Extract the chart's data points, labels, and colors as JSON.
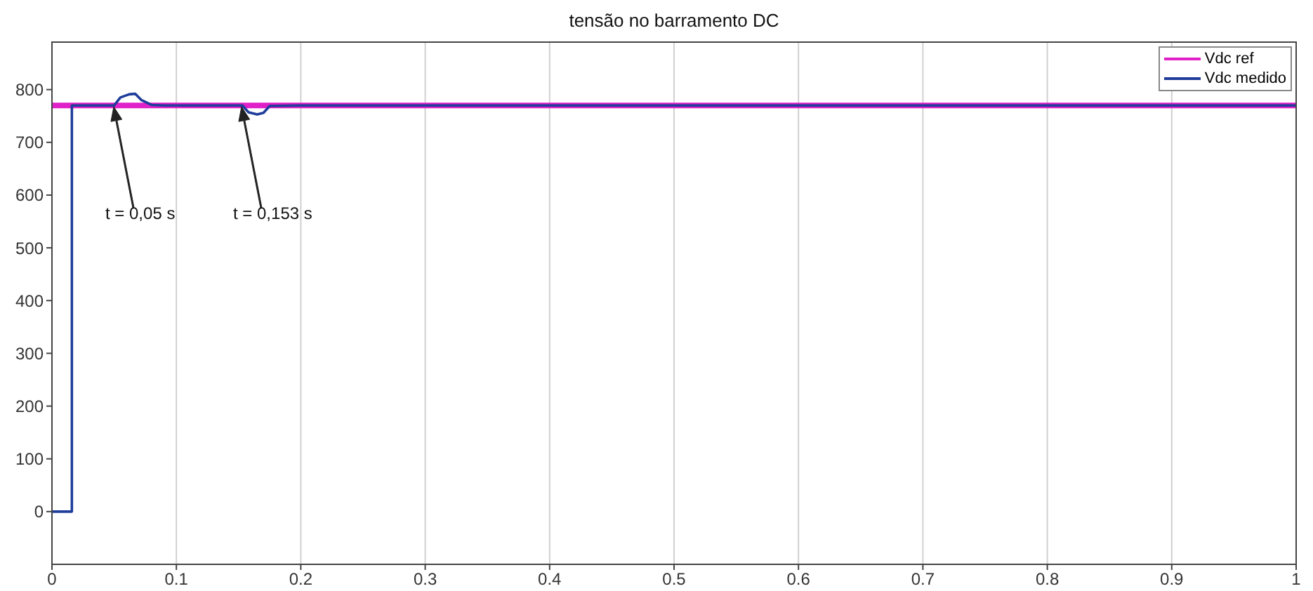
{
  "chart_data": {
    "type": "line",
    "title": "tensão no barramento DC",
    "xlim": [
      0,
      1
    ],
    "xticks": [
      0,
      0.1,
      0.2,
      0.3,
      0.4,
      0.5,
      0.6,
      0.7,
      0.8,
      0.9,
      1
    ],
    "ylim": [
      -100,
      890
    ],
    "yticks": [
      0,
      100,
      200,
      300,
      400,
      500,
      600,
      700,
      800
    ],
    "grid": true,
    "legend": "top right",
    "marker": "none",
    "line_style": "solid",
    "series": [
      {
        "name": "Vdc ref",
        "color": "#e020c8",
        "x": [
          0,
          1
        ],
        "values": [
          770,
          770
        ]
      },
      {
        "name": "Vdc medido",
        "color": "#1f3d9a",
        "x": [
          0,
          0.016,
          0.016,
          0.05,
          0.055,
          0.062,
          0.067,
          0.072,
          0.08,
          0.09,
          0.153,
          0.158,
          0.165,
          0.17,
          0.175,
          0.2,
          0.22,
          1
        ],
        "values": [
          0,
          0,
          770,
          770,
          785,
          791,
          792,
          780,
          771,
          770,
          770,
          757,
          753,
          756,
          769,
          770,
          770,
          770
        ]
      }
    ],
    "annotations": [
      "t = 0,05 s",
      "t = 0,153 s"
    ]
  }
}
